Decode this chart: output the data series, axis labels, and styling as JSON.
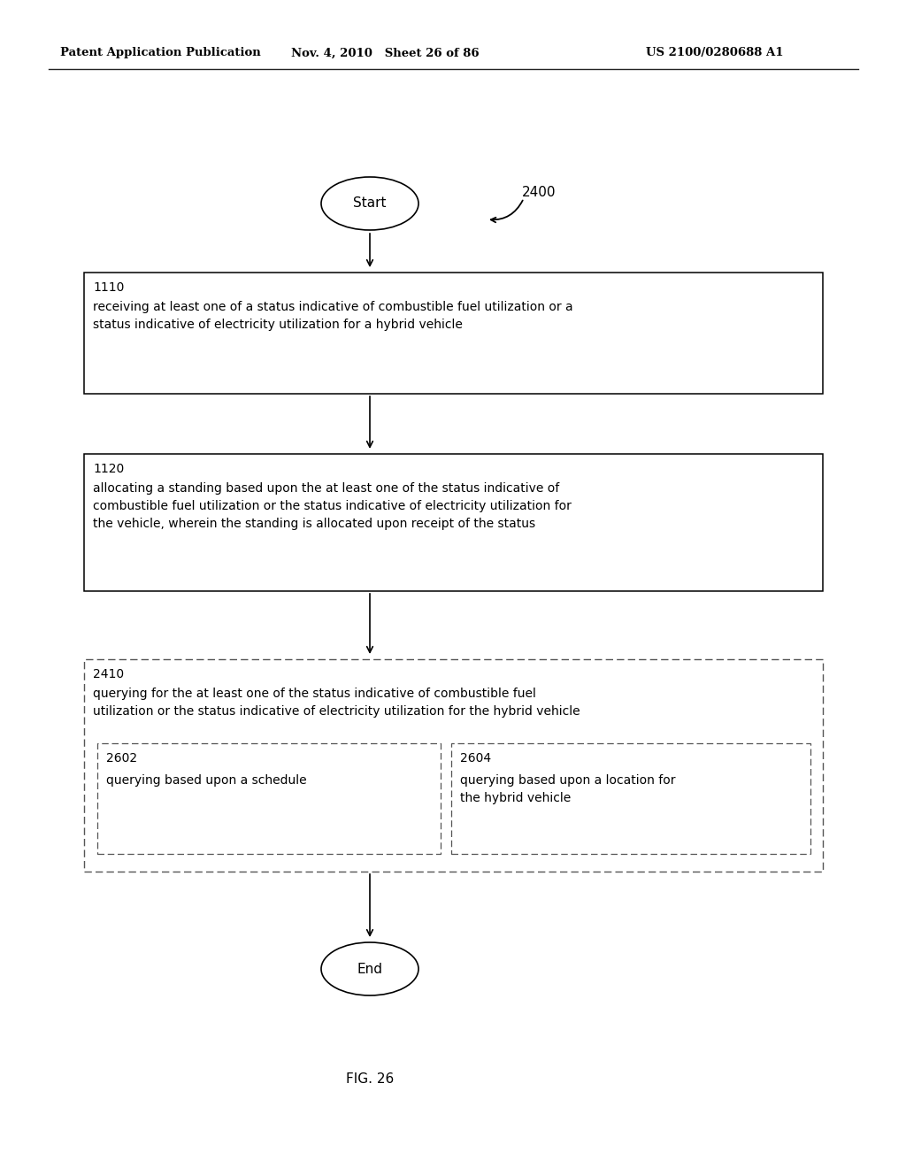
{
  "header_left": "Patent Application Publication",
  "header_mid": "Nov. 4, 2010   Sheet 26 of 86",
  "header_right": "US 2100/0280688 A1",
  "fig_label": "FIG. 26",
  "diagram_label": "2400",
  "start_label": "Start",
  "end_label": "End",
  "box1_id": "1110",
  "box1_text": "receiving at least one of a status indicative of combustible fuel utilization or a\nstatus indicative of electricity utilization for a hybrid vehicle",
  "box2_id": "1120",
  "box2_text": "allocating a standing based upon the at least one of the status indicative of\ncombustible fuel utilization or the status indicative of electricity utilization for\nthe vehicle, wherein the standing is allocated upon receipt of the status",
  "box3_id": "2410",
  "box3_text": "querying for the at least one of the status indicative of combustible fuel\nutilization or the status indicative of electricity utilization for the hybrid vehicle",
  "box3a_id": "2602",
  "box3a_text": "querying based upon a schedule",
  "box3b_id": "2604",
  "box3b_text": "querying based upon a location for\nthe hybrid vehicle",
  "bg_color": "#ffffff",
  "text_color": "#000000"
}
